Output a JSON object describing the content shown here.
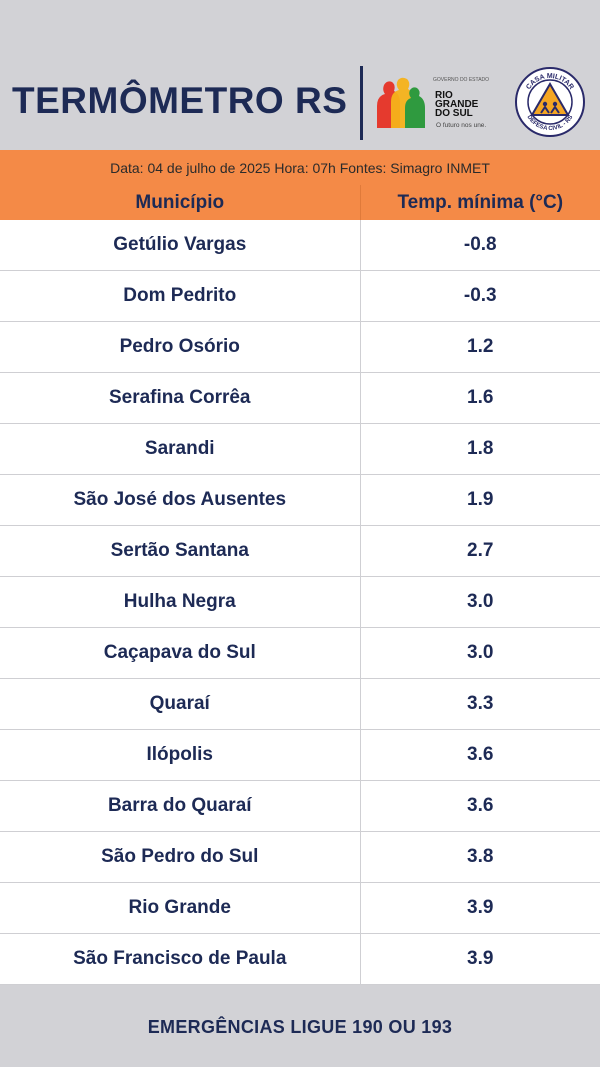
{
  "header": {
    "title": "TERMÔMETRO RS",
    "gov_logo": {
      "small_text": "GOVERNO DO ESTADO",
      "name_lines": [
        "RIO",
        "GRANDE",
        "DO SUL"
      ],
      "slogan": "O futuro nos une.",
      "colors": [
        "#e53a2e",
        "#f5b21a",
        "#2f9a3f"
      ]
    },
    "defesa_logo": {
      "top_text": "CASA MILITAR",
      "bottom_text": "DEFESA CIVIL - RS",
      "accent": "#f5a623"
    }
  },
  "info": "Data: 04 de julho de 2025 Hora: 07h Fontes: Simagro INMET",
  "table": {
    "headers": {
      "municipio": "Município",
      "temp": "Temp. mínima (°C)"
    },
    "rows": [
      {
        "municipio": "Getúlio Vargas",
        "temp": "-0.8"
      },
      {
        "municipio": "Dom Pedrito",
        "temp": "-0.3"
      },
      {
        "municipio": "Pedro Osório",
        "temp": "1.2"
      },
      {
        "municipio": "Serafina Corrêa",
        "temp": "1.6"
      },
      {
        "municipio": "Sarandi",
        "temp": "1.8"
      },
      {
        "municipio": "São José dos Ausentes",
        "temp": "1.9"
      },
      {
        "municipio": "Sertão Santana",
        "temp": "2.7"
      },
      {
        "municipio": "Hulha Negra",
        "temp": "3.0"
      },
      {
        "municipio": "Caçapava do Sul",
        "temp": "3.0"
      },
      {
        "municipio": "Quaraí",
        "temp": "3.3"
      },
      {
        "municipio": "Ilópolis",
        "temp": "3.6"
      },
      {
        "municipio": "Barra do Quaraí",
        "temp": "3.6"
      },
      {
        "municipio": "São Pedro do Sul",
        "temp": "3.8"
      },
      {
        "municipio": "Rio Grande",
        "temp": "3.9"
      },
      {
        "municipio": "São Francisco de Paula",
        "temp": "3.9"
      }
    ]
  },
  "footer": "EMERGÊNCIAS LIGUE 190 OU 193",
  "colors": {
    "navy": "#1d2a55",
    "orange": "#f48a47",
    "background": "#d2d2d6"
  }
}
